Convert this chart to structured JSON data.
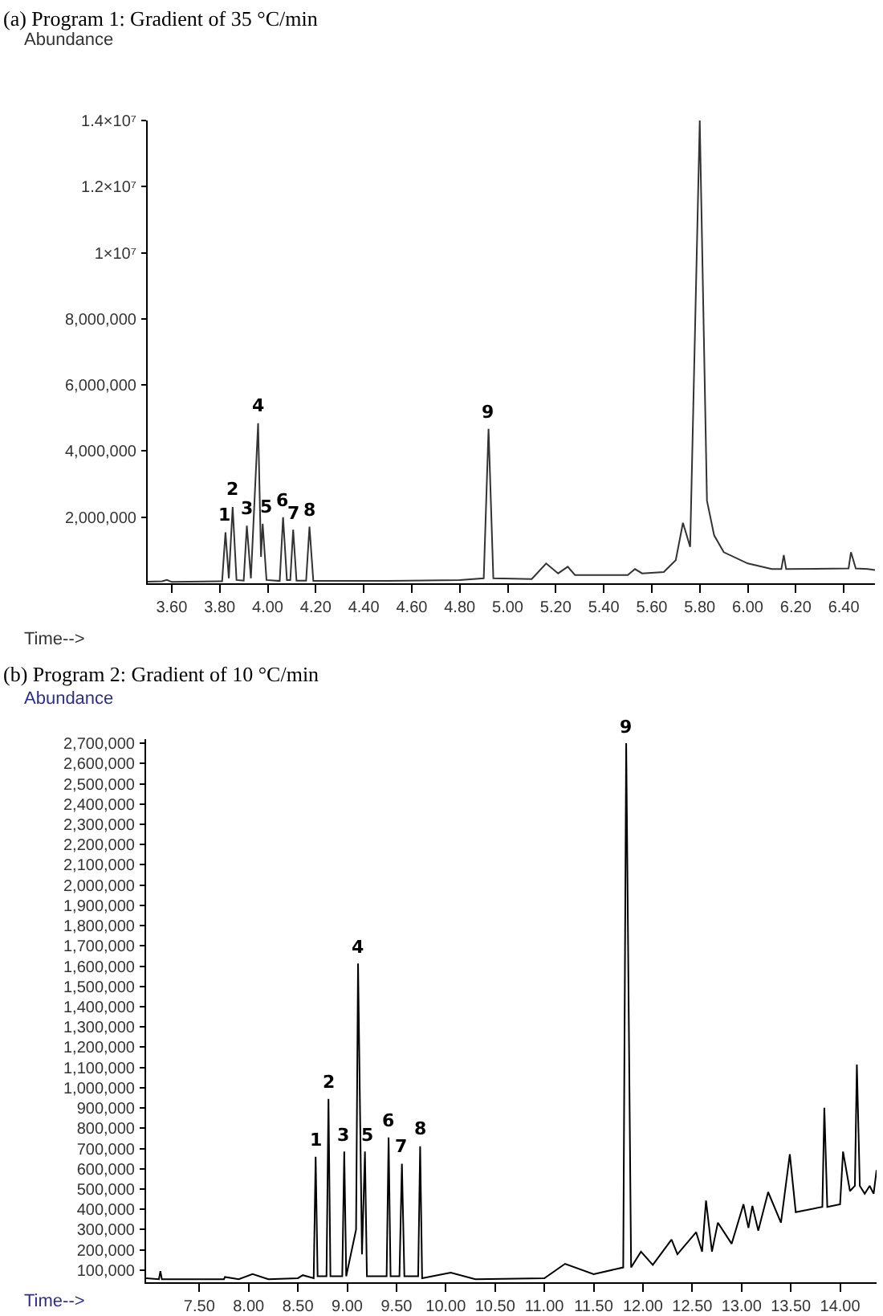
{
  "chart_data": [
    {
      "type": "line",
      "title": "(a) Program 1: Gradient of 35 °C/min",
      "ylabel": "Abundance",
      "xlabel": "Time-->",
      "marker": "none",
      "line_style": "solid",
      "xlim": [
        3.5,
        6.53
      ],
      "ylim": [
        0,
        14000000
      ],
      "xticks": [
        {
          "value": 3.6,
          "label": "3.60"
        },
        {
          "value": 3.8,
          "label": "3.80"
        },
        {
          "value": 4.0,
          "label": "4.00"
        },
        {
          "value": 4.2,
          "label": "4.20"
        },
        {
          "value": 4.4,
          "label": "4.40"
        },
        {
          "value": 4.6,
          "label": "4.60"
        },
        {
          "value": 4.8,
          "label": "4.80"
        },
        {
          "value": 5.0,
          "label": "5.00"
        },
        {
          "value": 5.2,
          "label": "5.20"
        },
        {
          "value": 5.4,
          "label": "5.40"
        },
        {
          "value": 5.6,
          "label": "5.60"
        },
        {
          "value": 5.8,
          "label": "5.80"
        },
        {
          "value": 6.0,
          "label": "6.00"
        },
        {
          "value": 6.2,
          "label": "6.20"
        },
        {
          "value": 6.4,
          "label": "6.40"
        }
      ],
      "yticks": [
        {
          "value": 2000000,
          "label": "2,000,000"
        },
        {
          "value": 4000000,
          "label": "4,000,000"
        },
        {
          "value": 6000000,
          "label": "6,000,000"
        },
        {
          "value": 8000000,
          "label": "8,000,000"
        },
        {
          "value": 10000000,
          "label": "1×10⁷"
        },
        {
          "value": 12000000,
          "label": "1.2×10⁷"
        },
        {
          "value": 14000000,
          "label": "1.4×10⁷"
        }
      ],
      "series": [
        {
          "color": "#333333",
          "x": [
            3.5,
            3.56,
            3.58,
            3.6,
            3.8,
            3.81,
            3.824,
            3.838,
            3.854,
            3.87,
            3.9,
            3.913,
            3.93,
            3.96,
            3.972,
            3.979,
            3.995,
            4.05,
            4.064,
            4.08,
            4.094,
            4.106,
            4.12,
            4.16,
            4.174,
            4.19,
            4.5,
            4.8,
            4.9,
            4.92,
            4.94,
            5.1,
            5.16,
            5.21,
            5.25,
            5.28,
            5.5,
            5.53,
            5.56,
            5.65,
            5.7,
            5.73,
            5.76,
            5.8,
            5.83,
            5.86,
            5.9,
            6.0,
            6.1,
            6.14,
            6.15,
            6.16,
            6.42,
            6.43,
            6.45,
            6.5,
            6.53
          ],
          "values": [
            50000,
            60000,
            100000,
            40000,
            60000,
            60000,
            1540000,
            150000,
            2310000,
            100000,
            80000,
            1740000,
            150000,
            4840000,
            800000,
            1800000,
            100000,
            70000,
            2000000,
            100000,
            100000,
            1620000,
            80000,
            80000,
            1710000,
            70000,
            70000,
            100000,
            150000,
            4670000,
            150000,
            130000,
            600000,
            300000,
            500000,
            250000,
            250000,
            430000,
            300000,
            340000,
            700000,
            1830000,
            1100000,
            14000000,
            2500000,
            1450000,
            940000,
            600000,
            430000,
            430000,
            850000,
            430000,
            450000,
            940000,
            450000,
            430000,
            400000
          ]
        }
      ],
      "annotations": [
        {
          "text": "1",
          "x": 3.824,
          "y": 1540000
        },
        {
          "text": "2",
          "x": 3.854,
          "y": 2310000
        },
        {
          "text": "3",
          "x": 3.913,
          "y": 1740000
        },
        {
          "text": "4",
          "x": 3.96,
          "y": 4840000
        },
        {
          "text": "5",
          "x": 3.992,
          "y": 1800000
        },
        {
          "text": "6",
          "x": 4.064,
          "y": 2000000
        },
        {
          "text": "7",
          "x": 4.106,
          "y": 1620000
        },
        {
          "text": "8",
          "x": 4.174,
          "y": 1710000
        },
        {
          "text": "9",
          "x": 4.92,
          "y": 4670000
        }
      ]
    },
    {
      "type": "line",
      "title": "(b) Program 2: Gradient of 10 °C/min",
      "ylabel": "Abundance",
      "xlabel": "Time-->",
      "marker": "none",
      "line_style": "solid",
      "xlim": [
        6.96,
        14.37
      ],
      "ylim": [
        40000,
        2720000
      ],
      "xticks": [
        {
          "value": 7.5,
          "label": "7.50"
        },
        {
          "value": 8.0,
          "label": "8.00"
        },
        {
          "value": 8.5,
          "label": "8.50"
        },
        {
          "value": 9.0,
          "label": "9.00"
        },
        {
          "value": 9.5,
          "label": "9.50"
        },
        {
          "value": 10.0,
          "label": "10.00"
        },
        {
          "value": 10.5,
          "label": "10.50"
        },
        {
          "value": 11.0,
          "label": "11.00"
        },
        {
          "value": 11.5,
          "label": "11.50"
        },
        {
          "value": 12.0,
          "label": "12.00"
        },
        {
          "value": 12.5,
          "label": "12.50"
        },
        {
          "value": 13.0,
          "label": "13.00"
        },
        {
          "value": 13.5,
          "label": "13.50"
        },
        {
          "value": 14.0,
          "label": "14.00"
        }
      ],
      "yticks": [
        {
          "value": 100000,
          "label": "100,000"
        },
        {
          "value": 200000,
          "label": "200,000"
        },
        {
          "value": 300000,
          "label": "300,000"
        },
        {
          "value": 400000,
          "label": "400,000"
        },
        {
          "value": 500000,
          "label": "500,000"
        },
        {
          "value": 600000,
          "label": "600,000"
        },
        {
          "value": 700000,
          "label": "700,000"
        },
        {
          "value": 800000,
          "label": "800,000"
        },
        {
          "value": 900000,
          "label": "900,000"
        },
        {
          "value": 1000000,
          "label": "1,000,000"
        },
        {
          "value": 1100000,
          "label": "1,100,000"
        },
        {
          "value": 1200000,
          "label": "1,200,000"
        },
        {
          "value": 1300000,
          "label": "1,300,000"
        },
        {
          "value": 1400000,
          "label": "1,400,000"
        },
        {
          "value": 1500000,
          "label": "1,500,000"
        },
        {
          "value": 1600000,
          "label": "1,600,000"
        },
        {
          "value": 1700000,
          "label": "1,700,000"
        },
        {
          "value": 1800000,
          "label": "1,800,000"
        },
        {
          "value": 1900000,
          "label": "1,900,000"
        },
        {
          "value": 2000000,
          "label": "2,000,000"
        },
        {
          "value": 2100000,
          "label": "2,100,000"
        },
        {
          "value": 2200000,
          "label": "2,200,000"
        },
        {
          "value": 2300000,
          "label": "2,300,000"
        },
        {
          "value": 2400000,
          "label": "2,400,000"
        },
        {
          "value": 2500000,
          "label": "2,500,000"
        },
        {
          "value": 2600000,
          "label": "2,600,000"
        },
        {
          "value": 2700000,
          "label": "2,700,000"
        }
      ],
      "series": [
        {
          "color": "#000000",
          "x": [
            6.96,
            7.09,
            7.105,
            7.12,
            7.75,
            7.76,
            7.9,
            8.04,
            8.2,
            8.5,
            8.55,
            8.66,
            8.68,
            8.7,
            8.79,
            8.81,
            8.83,
            8.95,
            8.97,
            8.99,
            9.09,
            9.11,
            9.15,
            9.18,
            9.2,
            9.4,
            9.42,
            9.44,
            9.53,
            9.555,
            9.58,
            9.72,
            9.74,
            9.76,
            10.05,
            10.3,
            11.0,
            11.21,
            11.5,
            11.8,
            11.83,
            11.88,
            11.98,
            12.1,
            12.29,
            12.35,
            12.54,
            12.6,
            12.64,
            12.7,
            12.76,
            12.9,
            13.02,
            13.07,
            13.11,
            13.17,
            13.27,
            13.4,
            13.49,
            13.55,
            13.82,
            13.84,
            13.87,
            14.0,
            14.03,
            14.1,
            14.15,
            14.17,
            14.2,
            14.25,
            14.3,
            14.34,
            14.37
          ],
          "values": [
            60000,
            55000,
            95000,
            55000,
            55000,
            66000,
            55000,
            80000,
            55000,
            60000,
            75000,
            60000,
            659000,
            70000,
            70000,
            945000,
            70000,
            70000,
            685000,
            70000,
            300000,
            1613000,
            178000,
            685000,
            70000,
            70000,
            755000,
            70000,
            70000,
            625000,
            70000,
            70000,
            711000,
            60000,
            87000,
            55000,
            60000,
            131000,
            80000,
            113000,
            2700000,
            113000,
            191000,
            126000,
            251000,
            178000,
            287000,
            191000,
            443000,
            191000,
            334000,
            230000,
            425000,
            308000,
            417000,
            295000,
            485000,
            334000,
            672000,
            386000,
            412000,
            901000,
            412000,
            425000,
            685000,
            490000,
            516000,
            1114000,
            516000,
            477000,
            516000,
            477000,
            594000
          ]
        }
      ],
      "annotations": [
        {
          "text": "1",
          "x": 8.68,
          "y": 659000
        },
        {
          "text": "2",
          "x": 8.81,
          "y": 945000
        },
        {
          "text": "3",
          "x": 8.97,
          "y": 685000
        },
        {
          "text": "4",
          "x": 9.11,
          "y": 1613000
        },
        {
          "text": "5",
          "x": 9.2,
          "y": 685000
        },
        {
          "text": "6",
          "x": 9.42,
          "y": 755000
        },
        {
          "text": "7",
          "x": 9.555,
          "y": 625000
        },
        {
          "text": "8",
          "x": 9.74,
          "y": 711000
        },
        {
          "text": "9",
          "x": 11.83,
          "y": 2700000
        }
      ]
    }
  ]
}
